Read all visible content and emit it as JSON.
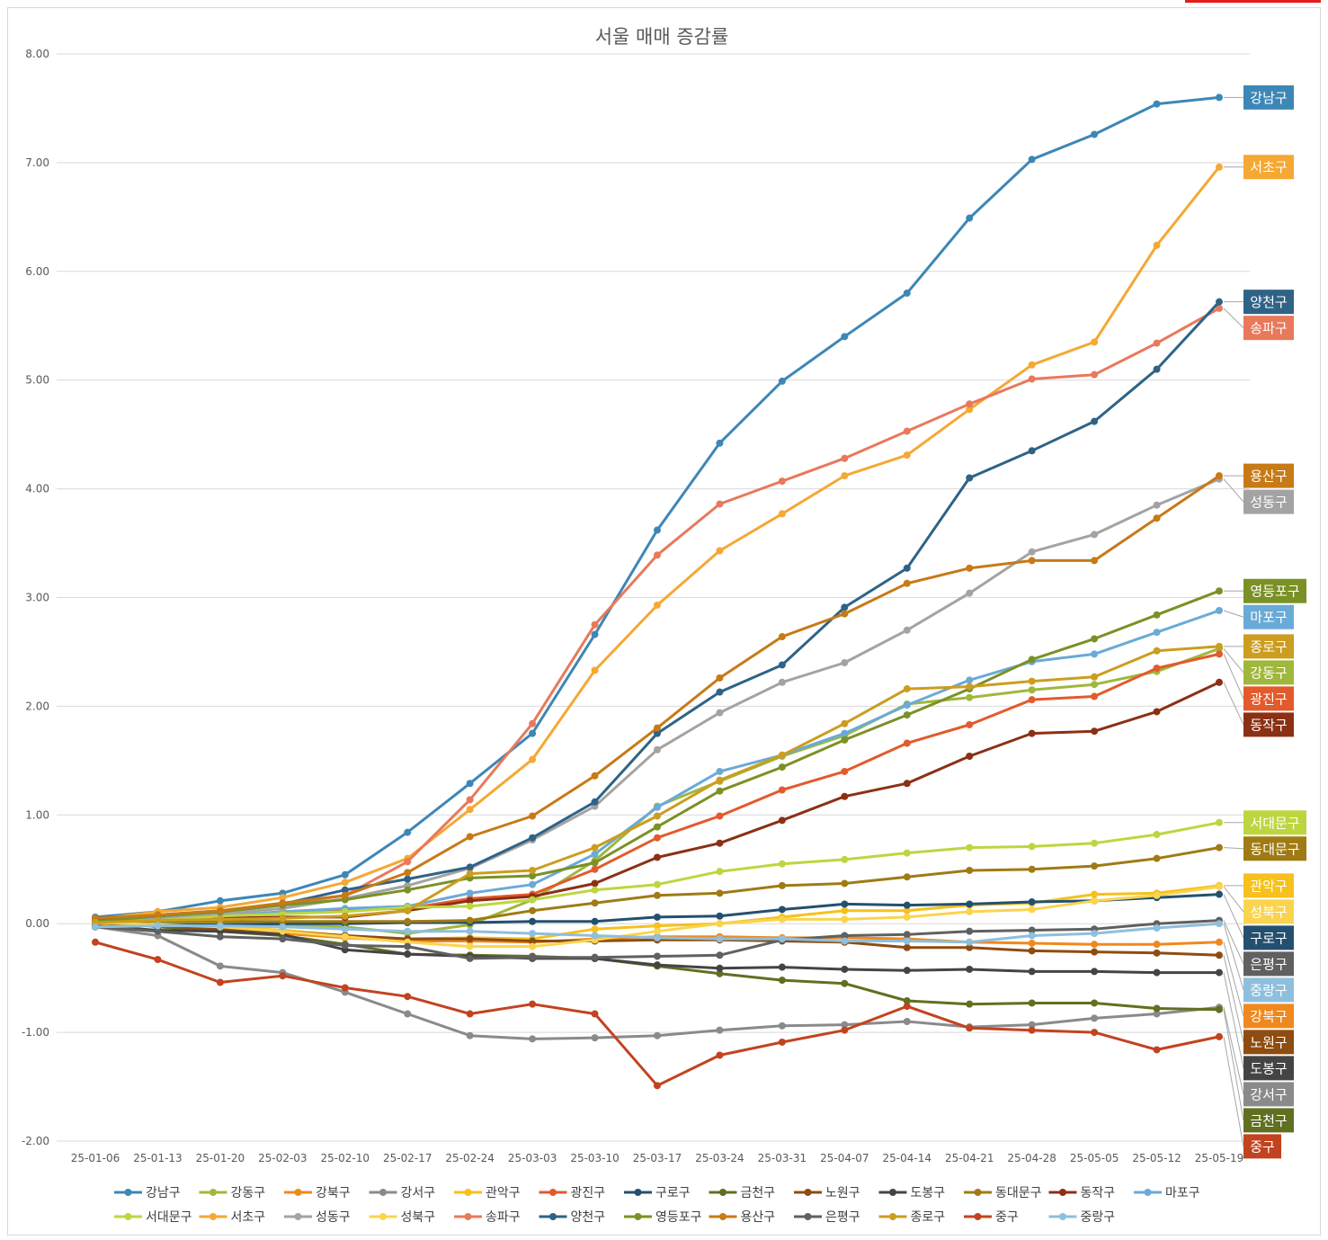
{
  "chart_data": {
    "type": "line",
    "title": "서울 매매 증감률",
    "categories": [
      "25-01-06",
      "25-01-13",
      "25-01-20",
      "25-02-03",
      "25-02-10",
      "25-02-17",
      "25-02-24",
      "25-03-03",
      "25-03-10",
      "25-03-17",
      "25-03-24",
      "25-03-31",
      "25-04-07",
      "25-04-14",
      "25-04-21",
      "25-04-28",
      "25-05-05",
      "25-05-12",
      "25-05-19"
    ],
    "ylim": [
      -2,
      8
    ],
    "yticks": [
      {
        "value": 8,
        "label": "8.00"
      },
      {
        "value": 7,
        "label": "7.00"
      },
      {
        "value": 6,
        "label": "6.00"
      },
      {
        "value": 5,
        "label": "5.00"
      },
      {
        "value": 4,
        "label": "4.00"
      },
      {
        "value": 3,
        "label": "3.00"
      },
      {
        "value": 2,
        "label": "2.00"
      },
      {
        "value": 1,
        "label": "1.00"
      },
      {
        "value": 0,
        "label": "0.00"
      },
      {
        "value": -1,
        "label": "-1.00"
      },
      {
        "value": -2,
        "label": "-2.00"
      }
    ],
    "grid": true,
    "legend": "bottom",
    "series": [
      {
        "name": "강남구",
        "color": "#3d87b6",
        "values": [
          0.06,
          0.11,
          0.21,
          0.28,
          0.45,
          0.84,
          1.29,
          1.75,
          2.66,
          3.62,
          4.42,
          4.99,
          5.4,
          5.8,
          6.49,
          7.03,
          7.26,
          7.54,
          7.6
        ]
      },
      {
        "name": "강동구",
        "color": "#9fb83c",
        "values": [
          0.02,
          0.02,
          0.0,
          -0.01,
          -0.03,
          -0.09,
          -0.01,
          0.22,
          0.58,
          1.08,
          1.31,
          1.54,
          1.73,
          2.02,
          2.08,
          2.15,
          2.2,
          2.32,
          2.53
        ]
      },
      {
        "name": "강북구",
        "color": "#f0891d",
        "values": [
          0.01,
          -0.02,
          -0.06,
          -0.09,
          -0.13,
          -0.16,
          -0.16,
          -0.17,
          -0.14,
          -0.12,
          -0.12,
          -0.13,
          -0.13,
          -0.14,
          -0.17,
          -0.18,
          -0.19,
          -0.19,
          -0.17
        ]
      },
      {
        "name": "강서구",
        "color": "#8a8a8a",
        "values": [
          -0.03,
          -0.11,
          -0.39,
          -0.45,
          -0.63,
          -0.83,
          -1.03,
          -1.06,
          -1.05,
          -1.03,
          -0.98,
          -0.94,
          -0.93,
          -0.9,
          -0.95,
          -0.93,
          -0.87,
          -0.83,
          -0.77
        ]
      },
      {
        "name": "관악구",
        "color": "#f6c11b",
        "values": [
          0.0,
          -0.02,
          -0.03,
          -0.06,
          -0.11,
          -0.14,
          -0.13,
          -0.14,
          -0.05,
          -0.02,
          0.0,
          0.06,
          0.12,
          0.12,
          0.17,
          0.19,
          0.27,
          0.28,
          0.35
        ]
      },
      {
        "name": "광진구",
        "color": "#e35a2c",
        "values": [
          0.02,
          0.05,
          0.07,
          0.11,
          0.13,
          0.14,
          0.23,
          0.27,
          0.5,
          0.79,
          0.99,
          1.23,
          1.4,
          1.66,
          1.83,
          2.06,
          2.09,
          2.35,
          2.48
        ]
      },
      {
        "name": "구로구",
        "color": "#24506f",
        "values": [
          -0.03,
          -0.01,
          -0.01,
          0.0,
          0.0,
          0.01,
          0.01,
          0.02,
          0.02,
          0.06,
          0.07,
          0.13,
          0.18,
          0.17,
          0.18,
          0.2,
          0.21,
          0.24,
          0.27
        ]
      },
      {
        "name": "금천구",
        "color": "#607020",
        "values": [
          0.03,
          -0.03,
          -0.07,
          -0.11,
          -0.19,
          -0.28,
          -0.29,
          -0.3,
          -0.32,
          -0.39,
          -0.46,
          -0.52,
          -0.55,
          -0.71,
          -0.74,
          -0.73,
          -0.73,
          -0.78,
          -0.79
        ]
      },
      {
        "name": "노원구",
        "color": "#8e4c10",
        "values": [
          0.01,
          -0.02,
          -0.05,
          -0.07,
          -0.11,
          -0.14,
          -0.14,
          -0.16,
          -0.16,
          -0.15,
          -0.15,
          -0.16,
          -0.17,
          -0.22,
          -0.22,
          -0.25,
          -0.26,
          -0.27,
          -0.29
        ]
      },
      {
        "name": "도봉구",
        "color": "#444444",
        "values": [
          -0.02,
          -0.06,
          -0.07,
          -0.1,
          -0.24,
          -0.28,
          -0.3,
          -0.32,
          -0.32,
          -0.38,
          -0.41,
          -0.4,
          -0.42,
          -0.43,
          -0.42,
          -0.44,
          -0.44,
          -0.45,
          -0.45
        ]
      },
      {
        "name": "동대문구",
        "color": "#a07b14",
        "values": [
          0.01,
          0.02,
          0.02,
          0.02,
          0.02,
          0.02,
          0.03,
          0.12,
          0.19,
          0.26,
          0.28,
          0.35,
          0.37,
          0.43,
          0.49,
          0.5,
          0.53,
          0.6,
          0.7
        ]
      },
      {
        "name": "동작구",
        "color": "#8b3015",
        "values": [
          0.02,
          0.03,
          0.05,
          0.06,
          0.06,
          0.12,
          0.21,
          0.25,
          0.37,
          0.61,
          0.74,
          0.95,
          1.17,
          1.29,
          1.54,
          1.75,
          1.77,
          1.95,
          2.22
        ]
      },
      {
        "name": "마포구",
        "color": "#6aaad6",
        "values": [
          0.02,
          0.05,
          0.07,
          0.11,
          0.14,
          0.16,
          0.28,
          0.36,
          0.64,
          1.07,
          1.4,
          1.55,
          1.75,
          2.01,
          2.24,
          2.41,
          2.48,
          2.68,
          2.88
        ]
      },
      {
        "name": "서대문구",
        "color": "#bdd640",
        "values": [
          0.02,
          0.03,
          0.07,
          0.09,
          0.11,
          0.15,
          0.16,
          0.22,
          0.31,
          0.36,
          0.48,
          0.55,
          0.59,
          0.65,
          0.7,
          0.71,
          0.74,
          0.82,
          0.93
        ]
      },
      {
        "name": "서초구",
        "color": "#f5a833",
        "values": [
          0.04,
          0.11,
          0.15,
          0.24,
          0.38,
          0.6,
          1.05,
          1.51,
          2.33,
          2.93,
          3.43,
          3.77,
          4.12,
          4.31,
          4.73,
          5.14,
          5.35,
          6.24,
          6.96
        ]
      },
      {
        "name": "성동구",
        "color": "#a3a3a3",
        "values": [
          0.02,
          0.06,
          0.09,
          0.14,
          0.23,
          0.35,
          0.51,
          0.77,
          1.08,
          1.6,
          1.94,
          2.22,
          2.4,
          2.7,
          3.04,
          3.42,
          3.58,
          3.85,
          4.09
        ]
      },
      {
        "name": "성북구",
        "color": "#fad44e",
        "values": [
          0.01,
          -0.01,
          -0.03,
          -0.07,
          -0.12,
          -0.17,
          -0.21,
          -0.21,
          -0.15,
          -0.07,
          0.0,
          0.04,
          0.04,
          0.06,
          0.11,
          0.13,
          0.21,
          0.26,
          0.34
        ]
      },
      {
        "name": "송파구",
        "color": "#e8795b",
        "values": [
          0.03,
          0.08,
          0.12,
          0.17,
          0.26,
          0.57,
          1.14,
          1.84,
          2.75,
          3.39,
          3.86,
          4.07,
          4.28,
          4.53,
          4.78,
          5.01,
          5.05,
          5.34,
          5.66
        ]
      },
      {
        "name": "양천구",
        "color": "#2e6386",
        "values": [
          0.03,
          0.07,
          0.11,
          0.18,
          0.31,
          0.41,
          0.52,
          0.79,
          1.12,
          1.75,
          2.13,
          2.38,
          2.91,
          3.27,
          4.1,
          4.35,
          4.62,
          5.1,
          5.72
        ]
      },
      {
        "name": "영등포구",
        "color": "#7a9125",
        "values": [
          0.02,
          0.07,
          0.11,
          0.17,
          0.22,
          0.31,
          0.42,
          0.44,
          0.56,
          0.89,
          1.22,
          1.44,
          1.69,
          1.92,
          2.16,
          2.43,
          2.62,
          2.84,
          3.06
        ]
      },
      {
        "name": "용산구",
        "color": "#c77a16",
        "values": [
          0.05,
          0.08,
          0.12,
          0.19,
          0.26,
          0.47,
          0.8,
          0.99,
          1.36,
          1.8,
          2.26,
          2.64,
          2.85,
          3.13,
          3.27,
          3.34,
          3.34,
          3.73,
          4.12
        ]
      },
      {
        "name": "은평구",
        "color": "#606060",
        "values": [
          -0.03,
          -0.07,
          -0.12,
          -0.14,
          -0.2,
          -0.21,
          -0.32,
          -0.31,
          -0.31,
          -0.3,
          -0.29,
          -0.15,
          -0.11,
          -0.1,
          -0.07,
          -0.06,
          -0.05,
          0.0,
          0.03
        ]
      },
      {
        "name": "종로구",
        "color": "#cc9d1f",
        "values": [
          0.01,
          0.03,
          0.04,
          0.05,
          0.07,
          0.12,
          0.46,
          0.49,
          0.7,
          0.99,
          1.32,
          1.55,
          1.84,
          2.16,
          2.18,
          2.23,
          2.27,
          2.51,
          2.55
        ]
      },
      {
        "name": "중구",
        "color": "#c2431f",
        "values": [
          -0.17,
          -0.33,
          -0.54,
          -0.48,
          -0.59,
          -0.67,
          -0.83,
          -0.74,
          -0.83,
          -1.49,
          -1.21,
          -1.09,
          -0.98,
          -0.76,
          -0.96,
          -0.98,
          -1.0,
          -1.16,
          -1.04
        ]
      },
      {
        "name": "중랑구",
        "color": "#8ebfdd",
        "values": [
          -0.03,
          -0.02,
          -0.02,
          -0.03,
          -0.05,
          -0.07,
          -0.07,
          -0.09,
          -0.11,
          -0.13,
          -0.14,
          -0.14,
          -0.16,
          -0.16,
          -0.17,
          -0.11,
          -0.09,
          -0.04,
          0.0
        ]
      }
    ]
  }
}
